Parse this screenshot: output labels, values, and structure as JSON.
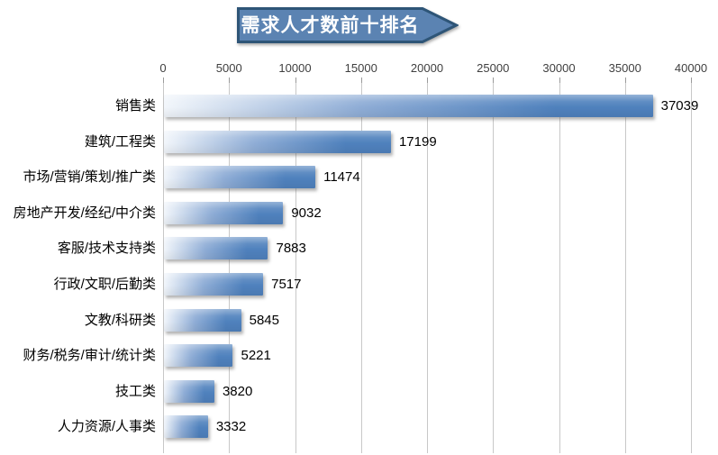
{
  "chart_data": {
    "type": "bar",
    "orientation": "horizontal",
    "title": "需求人才数前十排名",
    "categories": [
      "销售类",
      "建筑/工程类",
      "市场/营销/策划/推广类",
      "房地产开发/经纪/中介类",
      "客服/技术支持类",
      "行政/文职/后勤类",
      "文教/科研类",
      "财务/税务/审计/统计类",
      "技工类",
      "人力资源/人事类"
    ],
    "values": [
      37039,
      17199,
      11474,
      9032,
      7883,
      7517,
      5845,
      5221,
      3820,
      3332
    ],
    "value_labels": [
      "37039",
      "17199",
      "11474",
      "9032",
      "7883",
      "7517",
      "5845",
      "5221",
      "3820",
      "3332"
    ],
    "x_ticks": [
      0,
      5000,
      10000,
      15000,
      20000,
      25000,
      30000,
      35000,
      40000
    ],
    "x_tick_labels": [
      "0",
      "5000",
      "10000",
      "15000",
      "20000",
      "25000",
      "30000",
      "35000",
      "40000"
    ],
    "xlim": [
      0,
      40000
    ],
    "axis_position": "top",
    "grid": true,
    "legend": "none",
    "colors": {
      "bar_fill_solid": "#4f81bd",
      "bar_fill_mid": "#8fadd6",
      "bar_fill_start": "#f2f6fb",
      "gridline": "#c8c8c8",
      "tick_mark": "#9a9a9a",
      "axis_text": "#3f3f3f",
      "label_text": "#000000",
      "banner_fill": "#5b83b2",
      "banner_border": "#2e5577",
      "title_text": "#ffffff"
    }
  }
}
